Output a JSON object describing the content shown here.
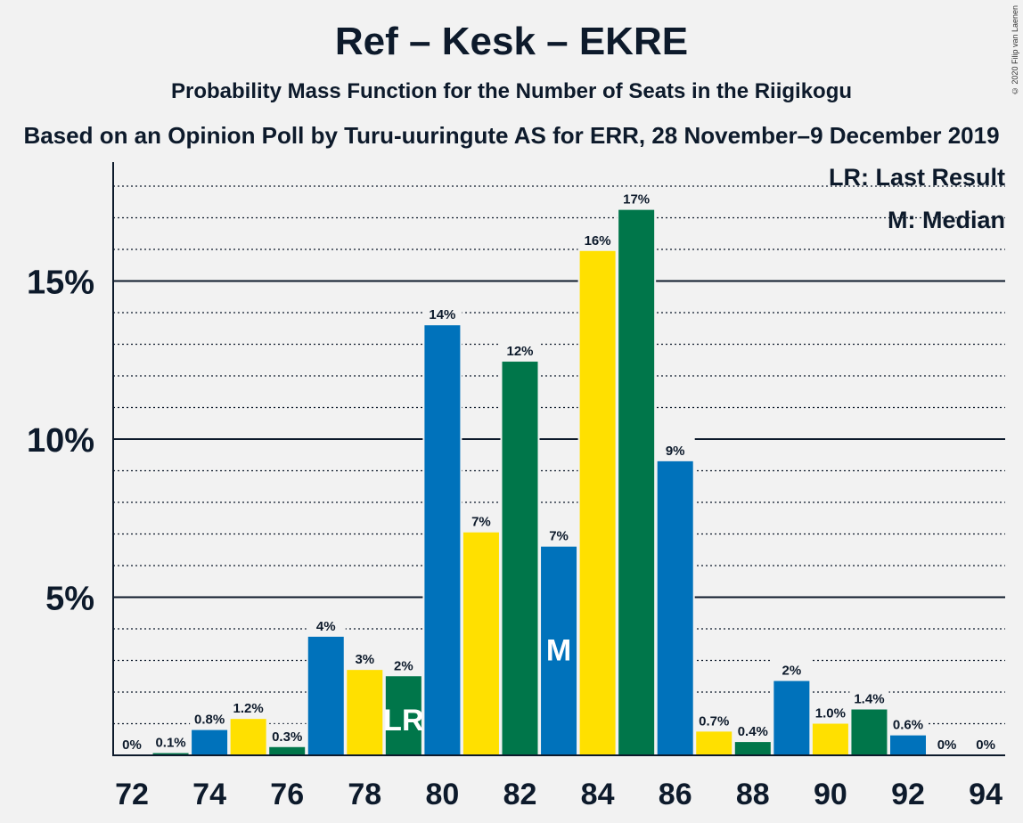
{
  "header": {
    "title": "Ref – Kesk – EKRE",
    "subtitle": "Probability Mass Function for the Number of Seats in the Riigikogu",
    "source": "Based on an Opinion Poll by Turu-uuringute AS for ERR, 28 November–9 December 2019",
    "copyright": "© 2020 Filip van Laenen"
  },
  "legend": {
    "last_result": "LR: Last Result",
    "median": "M: Median"
  },
  "colors": {
    "blue": "#0072bb",
    "yellow": "#ffe000",
    "green": "#00764a",
    "background": "#f2f2f2",
    "text": "#0d1a2b"
  },
  "chart_data": {
    "type": "bar",
    "x": [
      72,
      73,
      74,
      75,
      76,
      77,
      78,
      79,
      80,
      81,
      82,
      83,
      84,
      85,
      86,
      87,
      88,
      89,
      90,
      91,
      92,
      93,
      94
    ],
    "values": [
      0,
      0.07,
      0.8,
      1.15,
      0.26,
      3.75,
      2.7,
      2.5,
      13.6,
      7.05,
      12.45,
      6.6,
      15.95,
      17.25,
      9.3,
      0.75,
      0.42,
      2.35,
      1.0,
      1.45,
      0.63,
      0,
      0
    ],
    "labels": [
      "0%",
      "0.1%",
      "0.8%",
      "1.2%",
      "0.3%",
      "4%",
      "3%",
      "2%",
      "14%",
      "7%",
      "12%",
      "7%",
      "16%",
      "17%",
      "9%",
      "0.7%",
      "0.4%",
      "2%",
      "1.0%",
      "1.4%",
      "0.6%",
      "0%",
      "0%"
    ],
    "color_keys": [
      "green",
      "green",
      "blue",
      "yellow",
      "green",
      "blue",
      "yellow",
      "green",
      "blue",
      "yellow",
      "green",
      "blue",
      "yellow",
      "green",
      "blue",
      "yellow",
      "green",
      "blue",
      "yellow",
      "green",
      "blue",
      "yellow",
      "green"
    ],
    "x_ticks": [
      "72",
      "74",
      "76",
      "78",
      "80",
      "82",
      "84",
      "86",
      "88",
      "90",
      "92",
      "94"
    ],
    "y_ticks": [
      "5%",
      "10%",
      "15%"
    ],
    "y_tick_values": [
      5,
      10,
      15
    ],
    "ylim": [
      0,
      18.8
    ],
    "last_result_seat": 79,
    "last_result_marker": "LR",
    "median_seat": 83,
    "median_marker": "M",
    "grid": "major solid, minor dotted"
  }
}
